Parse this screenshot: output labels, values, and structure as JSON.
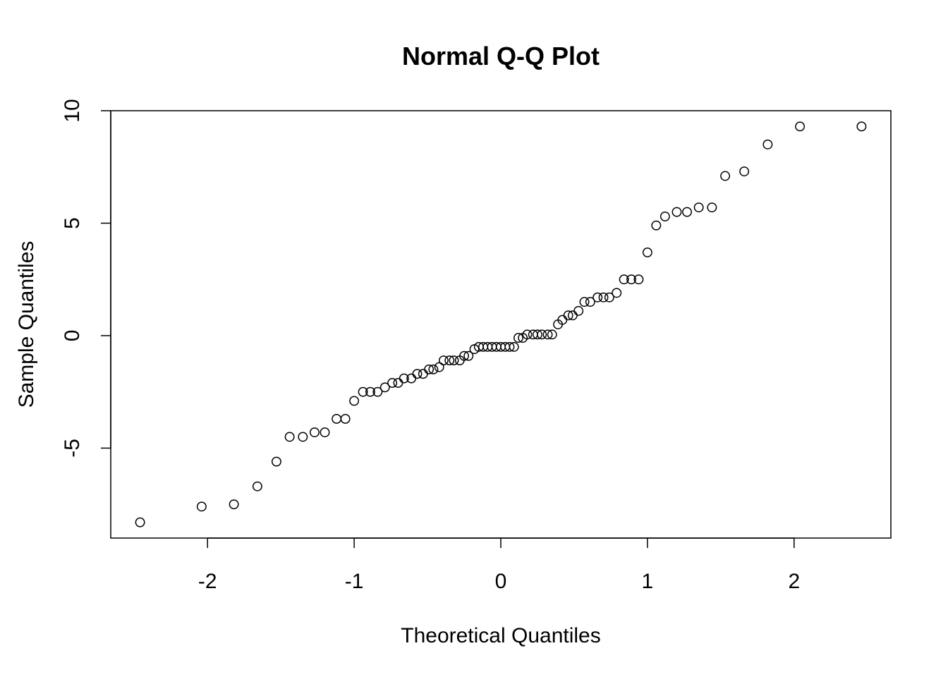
{
  "chart_data": {
    "type": "scatter",
    "title": "Normal Q-Q Plot",
    "xlabel": "Theoretical Quantiles",
    "ylabel": "Sample Quantiles",
    "xlim": [
      -2.66,
      2.66
    ],
    "ylim": [
      -9.0,
      10.0
    ],
    "x_ticks": [
      -2,
      -1,
      0,
      1,
      2
    ],
    "x_tick_labels": [
      "-2",
      "-1",
      "0",
      "1",
      "2"
    ],
    "y_ticks": [
      -5,
      0,
      5,
      10
    ],
    "y_tick_labels": [
      "-5",
      "0",
      "5",
      "10"
    ],
    "grid": false,
    "legend": "none",
    "points": [
      [
        -2.46,
        -8.3
      ],
      [
        -2.04,
        -7.6
      ],
      [
        -1.82,
        -7.5
      ],
      [
        -1.66,
        -6.7
      ],
      [
        -1.53,
        -5.6
      ],
      [
        -1.44,
        -4.5
      ],
      [
        -1.35,
        -4.5
      ],
      [
        -1.27,
        -4.3
      ],
      [
        -1.2,
        -4.3
      ],
      [
        -1.12,
        -3.7
      ],
      [
        -1.06,
        -3.7
      ],
      [
        -1.0,
        -2.9
      ],
      [
        -0.94,
        -2.5
      ],
      [
        -0.89,
        -2.5
      ],
      [
        -0.84,
        -2.5
      ],
      [
        -0.79,
        -2.3
      ],
      [
        -0.74,
        -2.1
      ],
      [
        -0.7,
        -2.1
      ],
      [
        -0.66,
        -1.9
      ],
      [
        -0.61,
        -1.9
      ],
      [
        -0.57,
        -1.7
      ],
      [
        -0.53,
        -1.7
      ],
      [
        -0.49,
        -1.5
      ],
      [
        -0.46,
        -1.5
      ],
      [
        -0.42,
        -1.4
      ],
      [
        -0.39,
        -1.1
      ],
      [
        -0.35,
        -1.1
      ],
      [
        -0.32,
        -1.1
      ],
      [
        -0.28,
        -1.1
      ],
      [
        -0.25,
        -0.9
      ],
      [
        -0.22,
        -0.9
      ],
      [
        -0.18,
        -0.6
      ],
      [
        -0.15,
        -0.5
      ],
      [
        -0.12,
        -0.5
      ],
      [
        -0.09,
        -0.5
      ],
      [
        -0.06,
        -0.5
      ],
      [
        -0.03,
        -0.5
      ],
      [
        0.0,
        -0.5
      ],
      [
        0.03,
        -0.5
      ],
      [
        0.06,
        -0.5
      ],
      [
        0.09,
        -0.5
      ],
      [
        0.12,
        -0.1
      ],
      [
        0.15,
        -0.1
      ],
      [
        0.18,
        0.05
      ],
      [
        0.22,
        0.05
      ],
      [
        0.25,
        0.05
      ],
      [
        0.28,
        0.05
      ],
      [
        0.32,
        0.05
      ],
      [
        0.35,
        0.05
      ],
      [
        0.39,
        0.5
      ],
      [
        0.42,
        0.7
      ],
      [
        0.46,
        0.9
      ],
      [
        0.49,
        0.9
      ],
      [
        0.53,
        1.1
      ],
      [
        0.57,
        1.5
      ],
      [
        0.61,
        1.5
      ],
      [
        0.66,
        1.7
      ],
      [
        0.7,
        1.7
      ],
      [
        0.74,
        1.7
      ],
      [
        0.79,
        1.9
      ],
      [
        0.84,
        2.5
      ],
      [
        0.89,
        2.5
      ],
      [
        0.94,
        2.5
      ],
      [
        1.0,
        3.7
      ],
      [
        1.06,
        4.9
      ],
      [
        1.12,
        5.3
      ],
      [
        1.2,
        5.5
      ],
      [
        1.27,
        5.5
      ],
      [
        1.35,
        5.7
      ],
      [
        1.44,
        5.7
      ],
      [
        1.53,
        7.1
      ],
      [
        1.66,
        7.3
      ],
      [
        1.82,
        8.5
      ],
      [
        2.04,
        9.3
      ],
      [
        2.46,
        9.3
      ]
    ]
  }
}
